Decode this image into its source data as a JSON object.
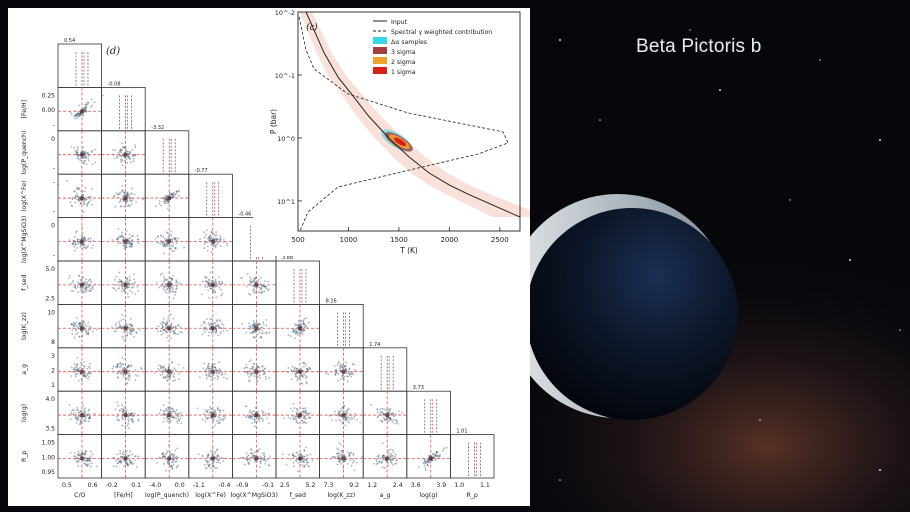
{
  "slide": {
    "title": "Beta Pictoris b"
  },
  "corner_plot": {
    "panel_label": "(d)",
    "params": [
      {
        "name": "C/O",
        "axis_label": "C/O",
        "value": "0.54",
        "ticks": [
          "0.5",
          "0.6"
        ]
      },
      {
        "name": "[Fe/H]",
        "axis_label": "[Fe/H]",
        "value": "-0.08",
        "ticks": [
          "-0.2",
          "0.1"
        ],
        "y_ticks": [
          "0.25",
          "0.00",
          "-"
        ]
      },
      {
        "name": "log(P_quench)",
        "axis_label": "log(P_quench)",
        "value": "-3.32",
        "ticks": [
          "-4.0",
          "0.0"
        ],
        "y_ticks": [
          "0",
          "-"
        ]
      },
      {
        "name": "log(X^Fe)",
        "axis_label": "log(X^Fe)",
        "value": "-0.77",
        "ticks": [
          "-1.1",
          "-0.4"
        ],
        "y_ticks": [
          "-",
          "-"
        ]
      },
      {
        "name": "log(X^MgSiO3)",
        "axis_label": "log(X^MgSiO3)",
        "value": "-0.46",
        "ticks": [
          "-0.9",
          "-0.1"
        ],
        "y_ticks": [
          "0",
          "-"
        ]
      },
      {
        "name": "f_sed",
        "axis_label": "f_sed",
        "value": "3.88",
        "ticks": [
          "2.5",
          "5.2"
        ],
        "y_ticks": [
          "5.0",
          "2.5"
        ]
      },
      {
        "name": "log(K_zz)",
        "axis_label": "log(K_zz)",
        "value": "8.16",
        "ticks": [
          "7.3",
          "9.2"
        ],
        "y_ticks": [
          "10",
          "8"
        ]
      },
      {
        "name": "a_g",
        "axis_label": "a_g",
        "value": "1.74",
        "ticks": [
          "1.2",
          "2.4"
        ],
        "y_ticks": [
          "3",
          "2",
          "1"
        ]
      },
      {
        "name": "log(g)",
        "axis_label": "log(g)",
        "value": "3.73",
        "ticks": [
          "3.6",
          "3.9"
        ],
        "y_ticks": [
          "4.0",
          "3.5"
        ]
      },
      {
        "name": "R_p",
        "axis_label": "R_p",
        "value": "1.01",
        "ticks": [
          "1.0",
          "1.1"
        ],
        "y_ticks": [
          "1.05",
          "1.00",
          "0.95"
        ]
      }
    ],
    "y_axis_labels": [
      "[Fe/H]",
      "log(P_quench)",
      "log(X^Fe)",
      "log(X^MgSiO3)",
      "f_sed",
      "log(K_zz)",
      "a_g",
      "log(g)",
      "R_p"
    ]
  },
  "chart_data": {
    "type": "line",
    "panel_label": "(c)",
    "xlabel": "T (K)",
    "ylabel": "P (bar)",
    "xlim": [
      500,
      2700
    ],
    "x_ticks": [
      "500",
      "1000",
      "1500",
      "2000",
      "2500"
    ],
    "y_ticks": [
      "10^-2",
      "10^-1",
      "10^0",
      "10^1"
    ],
    "y_scale": "log",
    "legend": {
      "placement": "top-right",
      "entries": [
        {
          "label": "Input",
          "color": "#222222",
          "style": "solid"
        },
        {
          "label": "Spectral γ weighted contribution",
          "color": "#222222",
          "style": "dashed"
        },
        {
          "label": "Δα samples",
          "color": "#37d7e6",
          "style": "patch"
        },
        {
          "label": "3 sigma",
          "color": "#a3403f",
          "style": "patch"
        },
        {
          "label": "2 sigma",
          "color": "#f0a02b",
          "style": "patch"
        },
        {
          "label": "1 sigma",
          "color": "#d8201a",
          "style": "patch"
        }
      ]
    },
    "series": [
      {
        "name": "Input",
        "x": [
          580,
          650,
          760,
          900,
          1050,
          1200,
          1400,
          1600,
          1800,
          2000,
          2200,
          2450,
          2700
        ],
        "y": [
          0.01,
          0.018,
          0.045,
          0.11,
          0.22,
          0.45,
          1.0,
          2.0,
          3.6,
          5.6,
          8.0,
          12.0,
          18.0
        ]
      }
    ]
  }
}
